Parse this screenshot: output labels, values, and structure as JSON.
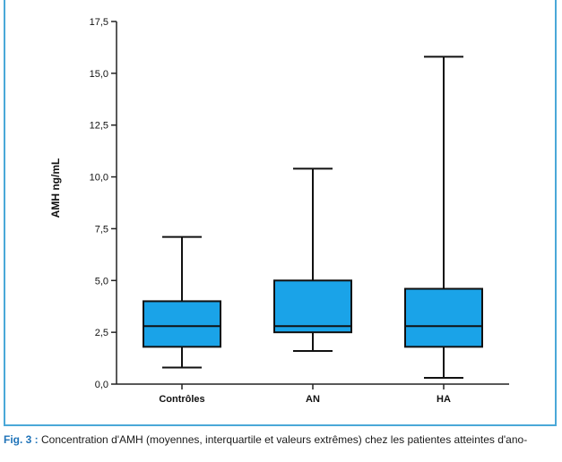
{
  "chart_data": {
    "type": "box",
    "ylabel": "AMH ng/mL",
    "ylim": [
      0,
      17.5
    ],
    "yticks": [
      "0,0",
      "2,5",
      "5,0",
      "7,5",
      "10,0",
      "12,5",
      "15,0",
      "17,5"
    ],
    "categories": [
      "Contrôles",
      "AN",
      "HA"
    ],
    "boxes": [
      {
        "min": 0.8,
        "q1": 1.8,
        "median": 2.8,
        "q3": 4.0,
        "max": 7.1
      },
      {
        "min": 1.6,
        "q1": 2.5,
        "median": 2.8,
        "q3": 5.0,
        "max": 10.4
      },
      {
        "min": 0.3,
        "q1": 1.8,
        "median": 2.8,
        "q3": 4.6,
        "max": 15.8
      }
    ],
    "box_color": "#1aa3e8"
  },
  "caption": {
    "label": "Fig. 3 :",
    "text": "Concentration d'AMH (moyennes, interquartile et valeurs extrêmes) chez les patientes atteintes d'ano-",
    "line2": ""
  },
  "colors": {
    "frame": "#4aa8d8",
    "caption_label": "#1f73b8"
  }
}
